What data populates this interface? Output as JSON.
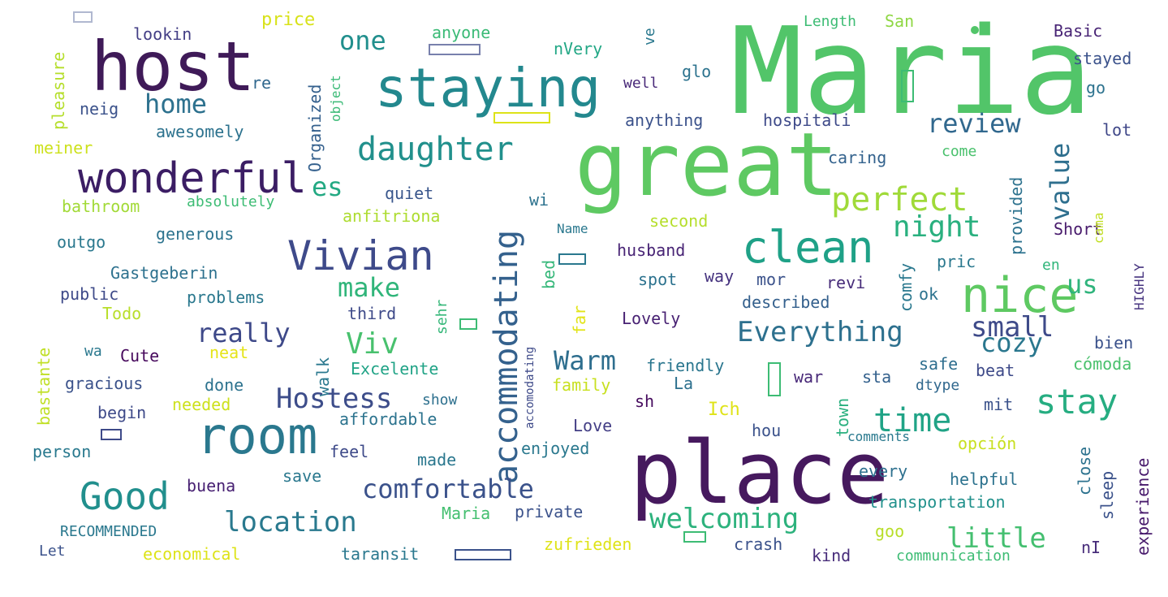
{
  "cloud": {
    "palette": {
      "purple": "#45175c",
      "indigo": "#3e4a8a",
      "blue": "#35608d",
      "teal": "#21908c",
      "cyan": "#2a788e",
      "green": "#3cbb75",
      "lime": "#7ad151",
      "yellow": "#bddf26",
      "gold": "#dfe318"
    },
    "words": [
      "Maria",
      "great",
      "place",
      "host",
      "staying",
      "wonderful",
      "clean",
      "nice",
      "room",
      "Vivian",
      "daughter",
      "Good",
      "perfect",
      "accommodating",
      "stay",
      "time",
      "Everything",
      "night",
      "comfortable",
      "location",
      "welcoming",
      "little",
      "review",
      "value",
      "home",
      "one",
      "es",
      "make",
      "really",
      "Viv",
      "Hostess",
      "Warm",
      "small",
      "cozy",
      "us",
      "anyone",
      "price",
      "lookin",
      "nVery",
      "Basic",
      "stayed",
      "go",
      "lot",
      "well",
      "re",
      "glo",
      "anything",
      "hospitali",
      "caring",
      "come",
      "awesomely",
      "neig",
      "meiner",
      "pleasure",
      "Organized",
      "object",
      "quiet",
      "wi",
      "absolutely",
      "bathroom",
      "anfitriona",
      "second",
      "Short",
      "HIGHLY",
      "cama",
      "provided",
      "en",
      "outgo",
      "generous",
      "Name",
      "husband",
      "pric",
      "Gastgeberin",
      "bed",
      "spot",
      "way",
      "mor",
      "revi",
      "comfy",
      "ok",
      "public",
      "problems",
      "described",
      "Todo",
      "third",
      "sehr",
      "far",
      "Lovely",
      "bastante",
      "wa",
      "Cute",
      "neat",
      "walk",
      "Excelente",
      "friendly",
      "war",
      "sta",
      "safe",
      "beat",
      "bien",
      "cómoda",
      "gracious",
      "done",
      "family",
      "La",
      "dtype",
      "sh",
      "mit",
      "begin",
      "needed",
      "show",
      "affordable",
      "Ich",
      "hou",
      "town",
      "Love",
      "comments",
      "opción",
      "person",
      "feel",
      "made",
      "enjoyed",
      "every",
      "helpful",
      "close",
      "sleep",
      "experience",
      "buena",
      "save",
      "private",
      "transportation",
      "Maria",
      "RECOMMENDED",
      "goo",
      "zufrieden",
      "crash",
      "nI",
      "Let",
      "economical",
      "taransit",
      "kind",
      "communication",
      "accomodating",
      "ve",
      "Length",
      "San"
    ]
  }
}
